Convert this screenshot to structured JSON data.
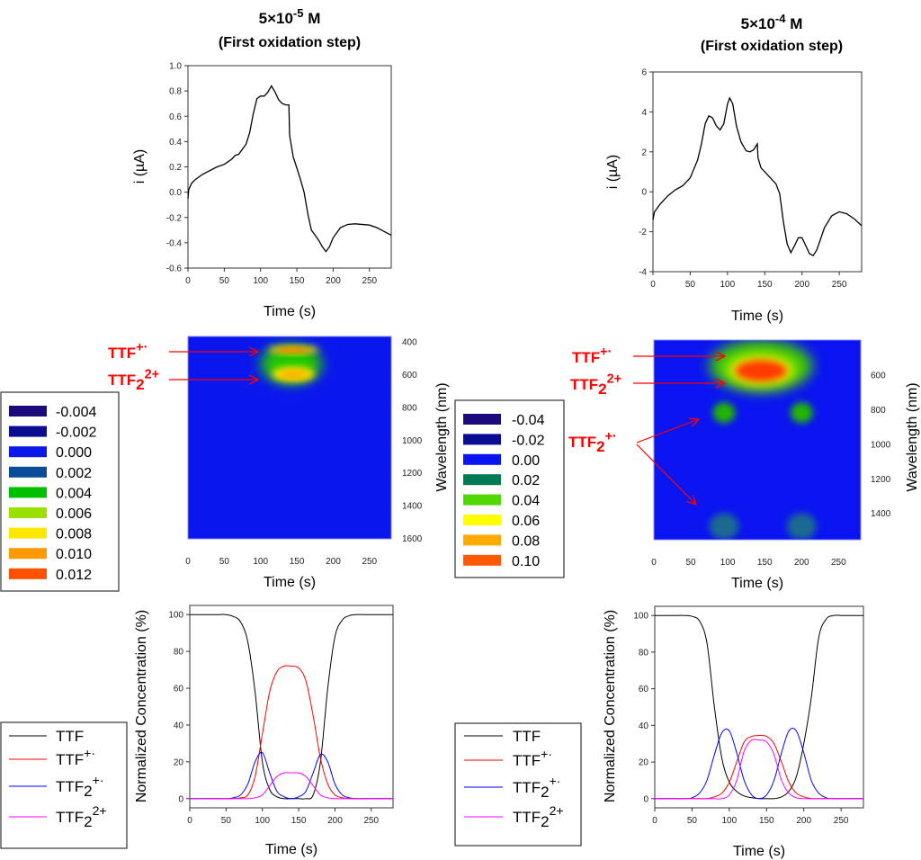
{
  "columns": [
    {
      "title_main": "5×10",
      "title_exp": "-5",
      "title_unit": " M",
      "subtitle": "(First oxidation step)"
    },
    {
      "title_main": "5×10",
      "title_exp": "-4",
      "title_unit": " M",
      "subtitle": "(First oxidation step)"
    }
  ],
  "chart_data": [
    {
      "id": "cv1",
      "type": "line",
      "xlabel": "Time (s)",
      "ylabel": "i (µA)",
      "xlim": [
        0,
        280
      ],
      "ylim": [
        -0.6,
        1.0
      ],
      "xticks": [
        0,
        50,
        100,
        150,
        200,
        250
      ],
      "yticks": [
        -0.6,
        -0.4,
        -0.2,
        0.0,
        0.2,
        0.4,
        0.6,
        0.8,
        1.0
      ],
      "ytick_decimals": 1,
      "series": [
        {
          "color": "#000000",
          "x": [
            0,
            1,
            5,
            10,
            20,
            30,
            40,
            50,
            60,
            65,
            70,
            80,
            85,
            90,
            95,
            100,
            105,
            110,
            115,
            120,
            125,
            130,
            135,
            139,
            140,
            145,
            150,
            155,
            160,
            165,
            170,
            175,
            180,
            185,
            190,
            195,
            200,
            210,
            220,
            230,
            250,
            260,
            270,
            280
          ],
          "y": [
            -0.05,
            0.02,
            0.07,
            0.1,
            0.14,
            0.17,
            0.2,
            0.22,
            0.26,
            0.29,
            0.3,
            0.38,
            0.47,
            0.62,
            0.74,
            0.76,
            0.76,
            0.79,
            0.84,
            0.79,
            0.73,
            0.7,
            0.69,
            0.69,
            0.45,
            0.28,
            0.19,
            0.1,
            0.0,
            -0.17,
            -0.3,
            -0.34,
            -0.38,
            -0.43,
            -0.47,
            -0.43,
            -0.36,
            -0.28,
            -0.255,
            -0.25,
            -0.26,
            -0.28,
            -0.31,
            -0.34
          ]
        }
      ]
    },
    {
      "id": "cv2",
      "type": "line",
      "xlabel": "Time (s)",
      "ylabel": "i (µA)",
      "xlim": [
        0,
        280
      ],
      "ylim": [
        -4,
        6
      ],
      "xticks": [
        0,
        50,
        100,
        150,
        200,
        250
      ],
      "yticks": [
        -4,
        -2,
        0,
        2,
        4,
        6
      ],
      "ytick_decimals": 0,
      "series": [
        {
          "color": "#000000",
          "x": [
            0,
            2,
            10,
            20,
            30,
            40,
            50,
            60,
            65,
            70,
            75,
            80,
            85,
            90,
            95,
            100,
            103,
            107,
            112,
            118,
            125,
            130,
            135,
            140,
            141,
            145,
            155,
            165,
            170,
            175,
            180,
            185,
            190,
            195,
            200,
            205,
            210,
            215,
            220,
            230,
            240,
            250,
            260,
            270,
            280
          ],
          "y": [
            -1.4,
            -1.0,
            -0.6,
            -0.2,
            0.1,
            0.3,
            0.7,
            1.6,
            2.4,
            3.4,
            3.8,
            3.7,
            3.3,
            3.1,
            3.4,
            4.4,
            4.7,
            4.4,
            3.3,
            2.5,
            2.05,
            2.0,
            2.1,
            2.4,
            1.7,
            1.2,
            0.8,
            0.4,
            -0.1,
            -1.5,
            -2.6,
            -3.05,
            -2.7,
            -2.3,
            -2.3,
            -2.7,
            -3.1,
            -3.2,
            -2.9,
            -1.8,
            -1.2,
            -1.0,
            -1.1,
            -1.35,
            -1.7
          ]
        }
      ]
    },
    {
      "id": "hm1",
      "type": "heatmap",
      "xlabel": "Time (s)",
      "ylabel": "Wavelength (nm)",
      "xlim": [
        0,
        280
      ],
      "ylim": [
        370,
        1605
      ],
      "y_inverted": true,
      "xticks": [
        0,
        50,
        100,
        150,
        200,
        250
      ],
      "yticks": [
        400,
        600,
        800,
        1000,
        1200,
        1400,
        1600
      ],
      "background_color": "#0a16ee",
      "features": [
        {
          "t_range": [
            100,
            185
          ],
          "wavelength_range": [
            420,
            660
          ],
          "value": 0.004,
          "color": "#22c800"
        },
        {
          "t_range": [
            115,
            175
          ],
          "wavelength_range": [
            555,
            645
          ],
          "value": 0.008,
          "color": "#ffe800"
        },
        {
          "t_range": [
            125,
            165
          ],
          "wavelength_range": [
            580,
            625
          ],
          "value": 0.01,
          "color": "#ffa000"
        },
        {
          "t_range": [
            110,
            180
          ],
          "wavelength_range": [
            430,
            475
          ],
          "value": 0.008,
          "color": "#ffe800"
        },
        {
          "t_range": [
            120,
            170
          ],
          "wavelength_range": [
            440,
            465
          ],
          "value": 0.012,
          "color": "#ff4a00"
        }
      ],
      "legend": [
        {
          "label": "-0.004",
          "color": "#1c0a7c"
        },
        {
          "label": "-0.002",
          "color": "#0a0c92"
        },
        {
          "label": "0.000",
          "color": "#0a18e8"
        },
        {
          "label": "0.002",
          "color": "#0a4c98"
        },
        {
          "label": "0.004",
          "color": "#00c000"
        },
        {
          "label": "0.006",
          "color": "#9ae000"
        },
        {
          "label": "0.008",
          "color": "#ffe800"
        },
        {
          "label": "0.010",
          "color": "#ff9a00"
        },
        {
          "label": "0.012",
          "color": "#ff5000"
        }
      ],
      "annotations": [
        {
          "base": "TTF",
          "sub": "",
          "sup": "+·",
          "target_t": 100,
          "target_wavelength": 450
        },
        {
          "base": "TTF",
          "sub": "2",
          "sup": "2+",
          "target_t": 100,
          "target_wavelength": 610
        }
      ]
    },
    {
      "id": "hm2",
      "type": "heatmap",
      "xlabel": "Time (s)",
      "ylabel": "Wavelength (nm)",
      "xlim": [
        0,
        280
      ],
      "ylim": [
        400,
        1555
      ],
      "y_inverted": true,
      "xticks": [
        0,
        50,
        100,
        150,
        200,
        250
      ],
      "yticks": [
        600,
        800,
        1000,
        1200,
        1400
      ],
      "background_color": "#0a14f0",
      "features": [
        {
          "t_range": [
            75,
            215
          ],
          "wavelength_range": [
            400,
            700
          ],
          "value": 0.04,
          "color": "#3cc800"
        },
        {
          "t_range": [
            100,
            190
          ],
          "wavelength_range": [
            490,
            660
          ],
          "value": 0.06,
          "color": "#ffff00"
        },
        {
          "t_range": [
            110,
            180
          ],
          "wavelength_range": [
            515,
            640
          ],
          "value": 0.1,
          "color": "#ff3a00"
        },
        {
          "t_range": [
            80,
            110
          ],
          "wavelength_range": [
            760,
            880
          ],
          "value": 0.04,
          "color": "#22b800"
        },
        {
          "t_range": [
            185,
            215
          ],
          "wavelength_range": [
            760,
            880
          ],
          "value": 0.04,
          "color": "#22b800"
        },
        {
          "t_range": [
            75,
            115
          ],
          "wavelength_range": [
            1400,
            1555
          ],
          "value": 0.02,
          "color": "#1a6a90"
        },
        {
          "t_range": [
            180,
            220
          ],
          "wavelength_range": [
            1400,
            1555
          ],
          "value": 0.02,
          "color": "#1a6a90"
        }
      ],
      "legend": [
        {
          "label": "-0.04",
          "color": "#1c0a7c"
        },
        {
          "label": "-0.02",
          "color": "#0a0c96"
        },
        {
          "label": "0.00",
          "color": "#0a14f0"
        },
        {
          "label": "0.02",
          "color": "#007a54"
        },
        {
          "label": "0.04",
          "color": "#50d800"
        },
        {
          "label": "0.06",
          "color": "#ffff00"
        },
        {
          "label": "0.08",
          "color": "#ffaa00"
        },
        {
          "label": "0.10",
          "color": "#ff5a00"
        }
      ],
      "annotations": [
        {
          "base": "TTF",
          "sub": "",
          "sup": "+·",
          "target_t": 100,
          "target_wavelength": 490
        },
        {
          "base": "TTF",
          "sub": "2",
          "sup": "2+",
          "target_t": 100,
          "target_wavelength": 650
        },
        {
          "base": "TTF",
          "sub": "2",
          "sup": "+·",
          "targets": [
            [
              63,
              840
            ],
            [
              61,
              1330
            ]
          ]
        }
      ]
    },
    {
      "id": "conc1",
      "type": "line",
      "xlabel": "Time (s)",
      "ylabel": "Normalized Concentration (%)",
      "xlim": [
        0,
        280
      ],
      "ylim": [
        -5,
        105
      ],
      "xticks": [
        0,
        50,
        100,
        150,
        200,
        250
      ],
      "yticks": [
        0,
        20,
        40,
        60,
        80,
        100
      ],
      "ytick_decimals": 0,
      "x": [
        0,
        10,
        20,
        30,
        40,
        50,
        60,
        70,
        80,
        90,
        100,
        110,
        120,
        130,
        140,
        150,
        160,
        170,
        180,
        190,
        200,
        210,
        220,
        230,
        240,
        250,
        260,
        270,
        280
      ],
      "series": [
        {
          "name": "TTF",
          "sup": "",
          "sub": "",
          "color": "#000000",
          "values": [
            100,
            100,
            100,
            100,
            100,
            100,
            99,
            96,
            85,
            58,
            20,
            5,
            1,
            0,
            0,
            0,
            0,
            2,
            20,
            60,
            88,
            97,
            99.5,
            100,
            100,
            100,
            100,
            100,
            100
          ]
        },
        {
          "name": "TTF",
          "sup": "+·",
          "sub": "",
          "color": "#ff0000",
          "values": [
            0,
            0,
            0,
            0,
            0,
            0,
            0,
            0.5,
            2,
            12,
            35,
            58,
            69,
            72,
            72,
            71,
            64,
            45,
            22,
            8,
            2,
            0.5,
            0,
            0,
            0,
            0,
            0,
            0,
            0
          ]
        },
        {
          "name": "TTF",
          "sup": "+·",
          "sub": "2",
          "color": "#0000ff",
          "values": [
            0,
            0,
            0,
            0,
            0,
            0,
            0.5,
            2,
            8,
            20,
            25,
            14,
            4,
            1,
            0,
            1,
            4,
            14,
            24,
            20,
            8,
            2,
            0.5,
            0,
            0,
            0,
            0,
            0,
            0
          ]
        },
        {
          "name": "TTF",
          "sup": "2+",
          "sub": "2",
          "color": "#ff00ff",
          "values": [
            0,
            0,
            0,
            0,
            0,
            0,
            0,
            0,
            0,
            0.5,
            2,
            7,
            12,
            14,
            14,
            14,
            12,
            7,
            2,
            0.5,
            0,
            0,
            0,
            0,
            0,
            0,
            0,
            0,
            0
          ]
        }
      ]
    },
    {
      "id": "conc2",
      "type": "line",
      "xlabel": "Time (s)",
      "ylabel": "Normalized Concentration (%)",
      "xlim": [
        0,
        280
      ],
      "ylim": [
        -5,
        105
      ],
      "xticks": [
        0,
        50,
        100,
        150,
        200,
        250
      ],
      "yticks": [
        0,
        20,
        40,
        60,
        80,
        100
      ],
      "ytick_decimals": 0,
      "x": [
        0,
        10,
        20,
        30,
        40,
        50,
        60,
        70,
        80,
        90,
        100,
        110,
        120,
        130,
        140,
        150,
        160,
        170,
        180,
        190,
        200,
        210,
        220,
        230,
        240,
        250,
        260,
        270,
        280
      ],
      "series": [
        {
          "name": "TTF",
          "sup": "",
          "sub": "",
          "color": "#000000",
          "values": [
            100,
            100,
            100,
            100,
            100,
            99.5,
            97,
            85,
            50,
            22,
            9,
            4,
            1.5,
            0.5,
            0,
            0,
            0,
            1,
            4,
            12,
            30,
            55,
            88,
            98,
            100,
            100,
            100,
            100,
            100
          ]
        },
        {
          "name": "TTF",
          "sup": "+·",
          "sub": "",
          "color": "#ff0000",
          "values": [
            0,
            0,
            0,
            0,
            0,
            0,
            0,
            0,
            1,
            3,
            9,
            20,
            31,
            34,
            34.5,
            34,
            30,
            20,
            9,
            3,
            1,
            0,
            0,
            0,
            0,
            0,
            0,
            0,
            0
          ]
        },
        {
          "name": "TTF",
          "sup": "+·",
          "sub": "2",
          "color": "#0000ff",
          "values": [
            0,
            0,
            0,
            0,
            0,
            0.5,
            3,
            10,
            24,
            36,
            37,
            25,
            10,
            2,
            0,
            2,
            10,
            25,
            37,
            37,
            25,
            10,
            3,
            0.5,
            0,
            0,
            0,
            0,
            0
          ]
        },
        {
          "name": "TTF",
          "sup": "2+",
          "sub": "2",
          "color": "#ff00ff",
          "values": [
            0,
            0,
            0,
            0,
            0,
            0,
            0,
            0,
            0,
            0,
            2,
            10,
            26,
            32,
            32,
            31,
            24,
            10,
            3,
            0.5,
            0,
            0,
            0,
            0,
            0,
            0,
            0,
            0,
            0
          ]
        }
      ]
    }
  ]
}
